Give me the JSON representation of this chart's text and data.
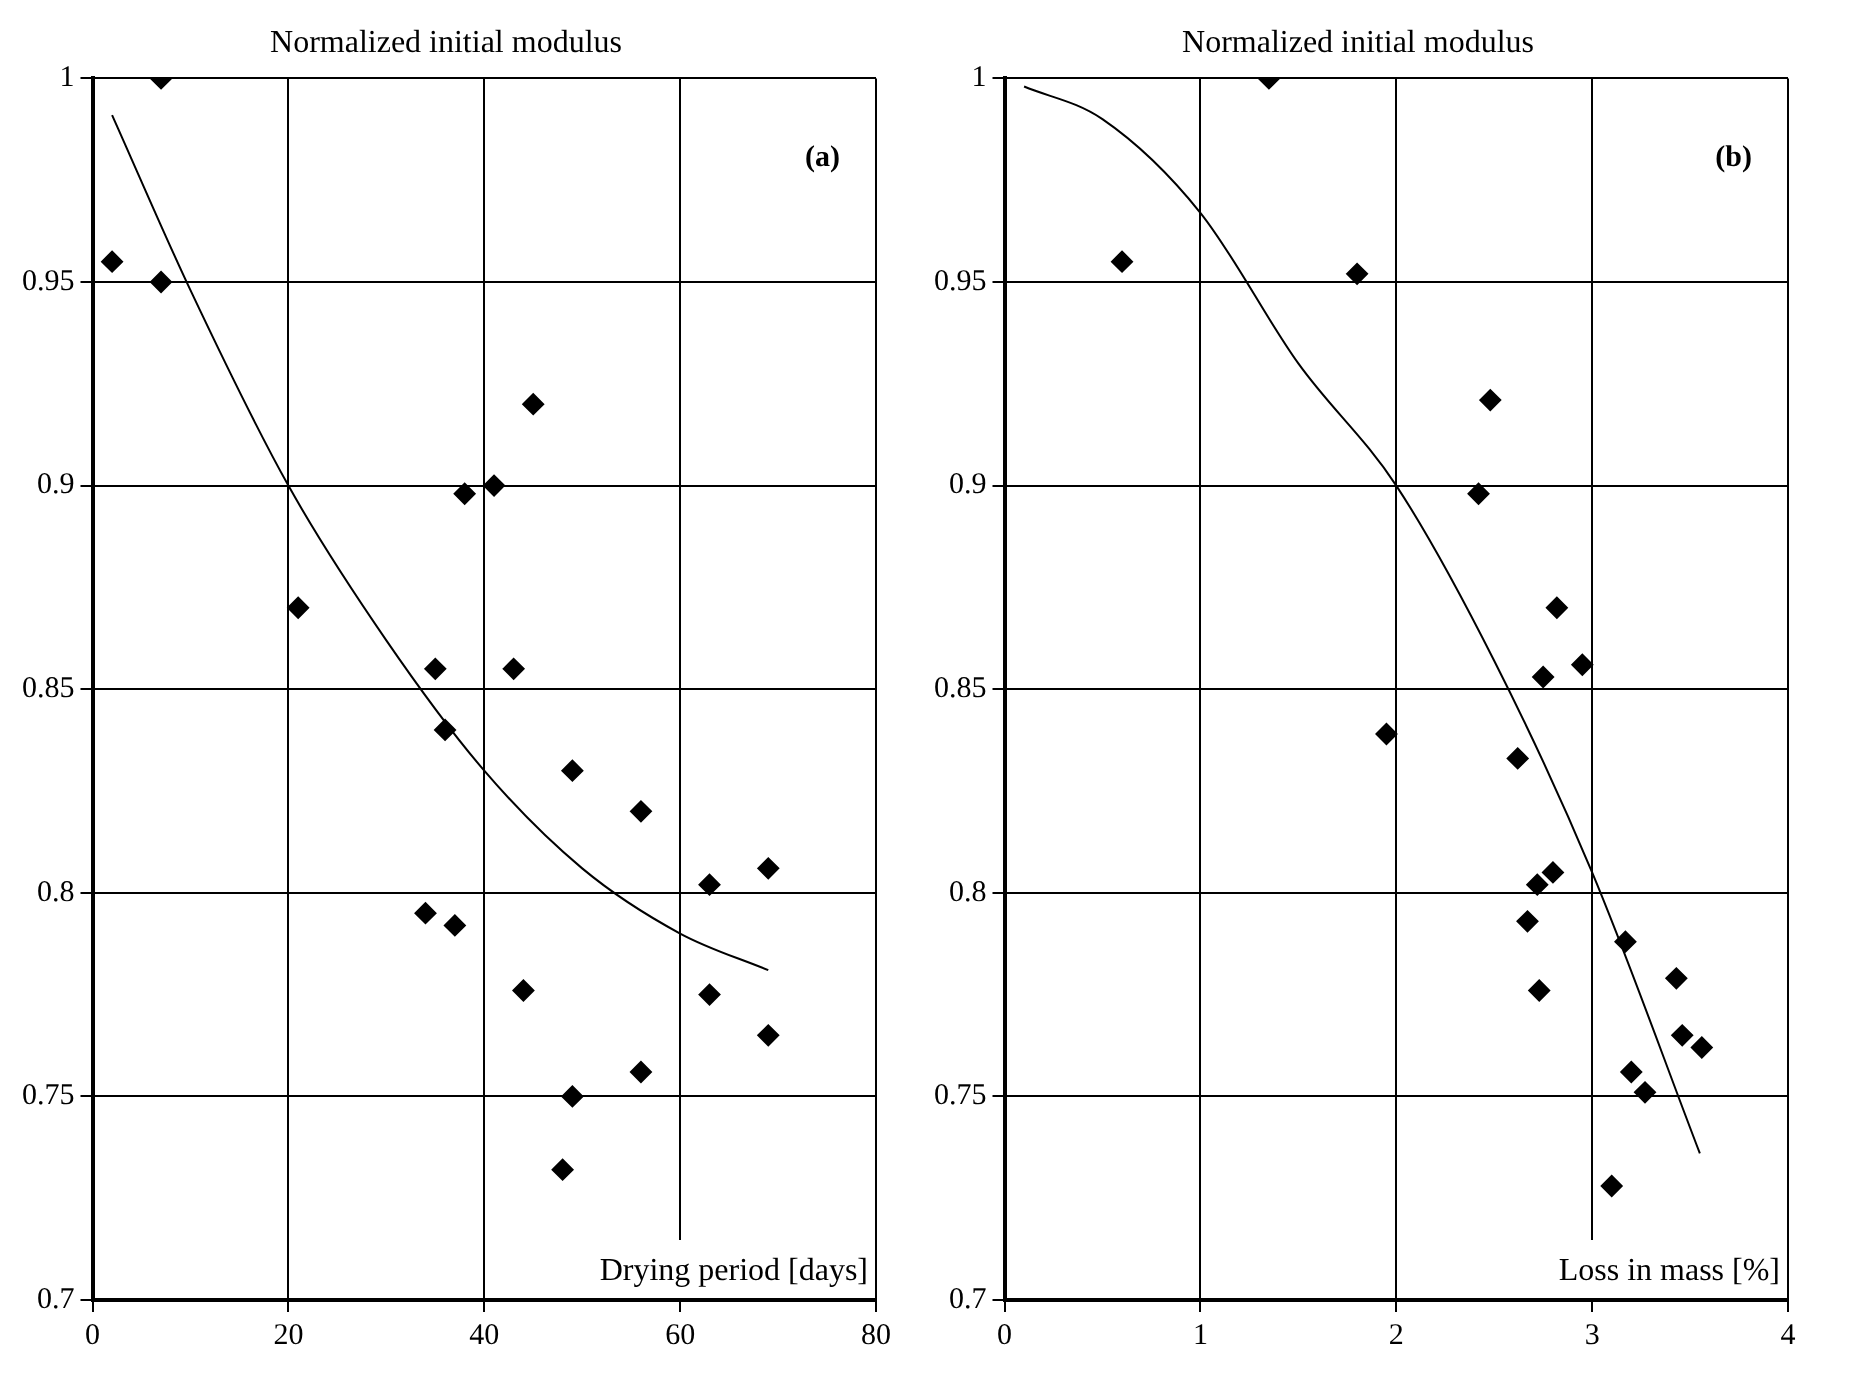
{
  "chart_data": [
    {
      "type": "scatter",
      "title": "Normalized initial modulus",
      "xlabel": "Drying period [days]",
      "annotations": [
        "(a)"
      ],
      "xlim": [
        0,
        80
      ],
      "xticks": [
        0,
        20,
        40,
        60,
        80
      ],
      "ylim": [
        0.7,
        1
      ],
      "yticks": [
        0.7,
        0.75,
        0.8,
        0.85,
        0.9,
        0.95,
        1
      ],
      "grid": true,
      "legend": false,
      "series": [
        {
          "marker": "diamond",
          "color": "#000000",
          "x": [
            2,
            7,
            7,
            21,
            35,
            36,
            38,
            41,
            45,
            43,
            34,
            37,
            44,
            49,
            49,
            48,
            56,
            56,
            63,
            63,
            69,
            69
          ],
          "values": [
            0.955,
            1.0,
            0.95,
            0.87,
            0.855,
            0.84,
            0.898,
            0.9,
            0.92,
            0.855,
            0.795,
            0.792,
            0.776,
            0.83,
            0.75,
            0.732,
            0.82,
            0.756,
            0.802,
            0.775,
            0.806,
            0.765
          ]
        },
        {
          "type": "line",
          "marker": "none",
          "line_style": "solid",
          "color": "#000000",
          "x": [
            2,
            10,
            20,
            30,
            40,
            50,
            60,
            69
          ],
          "values": [
            0.991,
            0.948,
            0.9,
            0.862,
            0.83,
            0.806,
            0.79,
            0.781
          ]
        }
      ]
    },
    {
      "type": "scatter",
      "title": "Normalized initial modulus",
      "xlabel": "Loss in mass [%]",
      "annotations": [
        "(b)"
      ],
      "xlim": [
        0,
        4
      ],
      "xticks": [
        0,
        1,
        2,
        3,
        4
      ],
      "ylim": [
        0.7,
        1
      ],
      "yticks": [
        0.7,
        0.75,
        0.8,
        0.85,
        0.9,
        0.95,
        1
      ],
      "grid": true,
      "legend": false,
      "series": [
        {
          "marker": "diamond",
          "color": "#000000",
          "x": [
            0.6,
            1.35,
            1.8,
            2.48,
            2.42,
            1.95,
            2.82,
            2.95,
            2.75,
            2.62,
            2.8,
            2.72,
            2.67,
            2.73,
            3.17,
            3.43,
            3.46,
            3.56,
            3.2,
            3.27,
            3.1
          ],
          "values": [
            0.955,
            1.0,
            0.952,
            0.921,
            0.898,
            0.839,
            0.87,
            0.856,
            0.853,
            0.833,
            0.805,
            0.802,
            0.793,
            0.776,
            0.788,
            0.779,
            0.765,
            0.762,
            0.756,
            0.751,
            0.728
          ]
        },
        {
          "type": "line",
          "marker": "none",
          "line_style": "solid",
          "color": "#000000",
          "x": [
            0.1,
            0.5,
            1,
            1.5,
            2,
            2.5,
            3,
            3.55
          ],
          "values": [
            0.998,
            0.99,
            0.967,
            0.93,
            0.9,
            0.857,
            0.805,
            0.736
          ]
        }
      ]
    }
  ]
}
